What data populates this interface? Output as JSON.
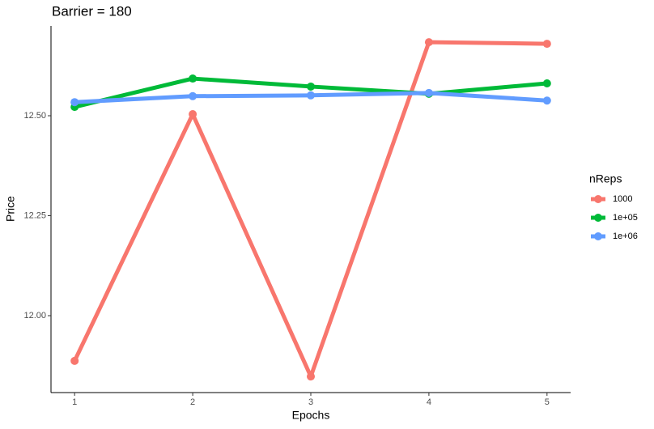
{
  "chart_data": {
    "type": "line",
    "title": "Barrier = 180",
    "x_label": "Epochs",
    "y_label": "Price",
    "legend_title": "nReps",
    "x": [
      1,
      2,
      3,
      4,
      5
    ],
    "series": [
      {
        "name": "1000",
        "color": "#f8766d",
        "values": [
          11.887,
          12.504,
          11.848,
          12.684,
          12.68
        ]
      },
      {
        "name": "1e+05",
        "color": "#00ba38",
        "values": [
          12.522,
          12.593,
          12.573,
          12.555,
          12.581
        ]
      },
      {
        "name": "1e+06",
        "color": "#619cff",
        "values": [
          12.534,
          12.549,
          12.551,
          12.557,
          12.538
        ]
      }
    ],
    "xlim": [
      0.8,
      5.2
    ],
    "xticks": [
      1,
      2,
      3,
      4,
      5
    ],
    "ylim": [
      11.8077,
      12.7247
    ],
    "yticks": [
      {
        "value": 12.0,
        "label": "12.00"
      },
      12.25,
      {
        "value": 12.5,
        "label": "12.50"
      }
    ],
    "legend_position": "right"
  }
}
